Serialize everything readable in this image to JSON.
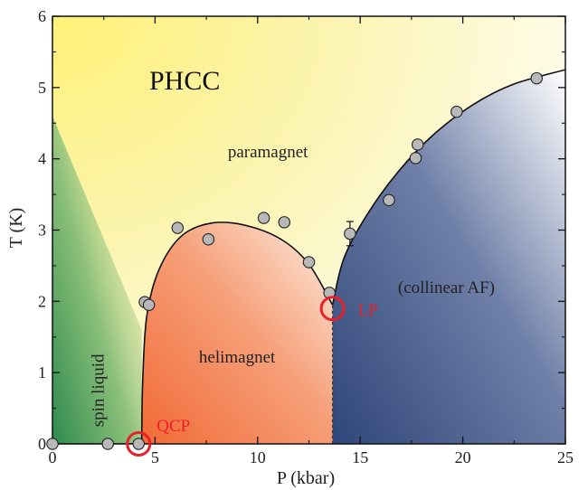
{
  "chart_data": {
    "type": "scatter",
    "title": "PHCC",
    "xlabel": "P (kbar)",
    "ylabel": "T (K)",
    "xlim": [
      0,
      25
    ],
    "ylim": [
      0,
      6
    ],
    "xticks": [
      "0",
      "5",
      "10",
      "15",
      "20",
      "25"
    ],
    "yticks": [
      "0",
      "1",
      "2",
      "3",
      "4",
      "5",
      "6"
    ],
    "grid": false,
    "legend": "none",
    "points": [
      {
        "x": 0.0,
        "y": 0.0
      },
      {
        "x": 2.7,
        "y": 0.0
      },
      {
        "x": 4.2,
        "y": 0.0
      },
      {
        "x": 4.5,
        "y": 1.99
      },
      {
        "x": 4.7,
        "y": 1.95
      },
      {
        "x": 6.1,
        "y": 3.03
      },
      {
        "x": 7.6,
        "y": 2.87
      },
      {
        "x": 10.3,
        "y": 3.17
      },
      {
        "x": 11.3,
        "y": 3.11
      },
      {
        "x": 12.5,
        "y": 2.55
      },
      {
        "x": 13.5,
        "y": 2.12
      },
      {
        "x": 14.5,
        "y": 2.95,
        "yerr": 0.17
      },
      {
        "x": 16.4,
        "y": 3.42
      },
      {
        "x": 17.7,
        "y": 4.01
      },
      {
        "x": 17.8,
        "y": 4.2
      },
      {
        "x": 19.7,
        "y": 4.66
      },
      {
        "x": 23.6,
        "y": 5.13
      }
    ],
    "curves": {
      "helimagnet_boundary": [
        [
          4.35,
          0
        ],
        [
          4.4,
          0.9
        ],
        [
          4.6,
          1.8
        ],
        [
          5.2,
          2.45
        ],
        [
          6.3,
          2.92
        ],
        [
          7.8,
          3.1
        ],
        [
          9.5,
          3.06
        ],
        [
          11.2,
          2.86
        ],
        [
          12.5,
          2.52
        ],
        [
          13.65,
          1.95
        ]
      ],
      "af_boundary": [
        [
          13.65,
          1.95
        ],
        [
          14.2,
          2.6
        ],
        [
          15.3,
          3.2
        ],
        [
          16.8,
          3.8
        ],
        [
          18.5,
          4.32
        ],
        [
          20.5,
          4.76
        ],
        [
          22.5,
          5.05
        ],
        [
          25.0,
          5.25
        ]
      ],
      "spin_liquid_baseline": [
        [
          0,
          0
        ],
        [
          4.35,
          0
        ]
      ],
      "first_order_line": [
        [
          13.65,
          0
        ],
        [
          13.65,
          1.95
        ]
      ]
    },
    "regions": [
      {
        "label": "paramagnet",
        "x": 10.5,
        "y": 4.02
      },
      {
        "label": "helimagnet",
        "x": 9.0,
        "y": 1.14
      },
      {
        "label": "(collinear AF)",
        "x": 19.2,
        "y": 2.12
      },
      {
        "label": "spin liquid",
        "x": 2.5,
        "y": 0.75,
        "rotated": true
      }
    ],
    "special_points": [
      {
        "label": "QCP",
        "x": 4.2,
        "y": 0.0
      },
      {
        "label": "LP",
        "x": 13.65,
        "y": 1.9
      }
    ],
    "colors": {
      "paramagnet": "#fbf3a6",
      "spin_liquid": "#2e8a4e",
      "helimagnet": "#f47a4a",
      "collinear_af": "#3d5585",
      "markers": "#b8b8b8",
      "critical_points": "#e8202a"
    }
  }
}
